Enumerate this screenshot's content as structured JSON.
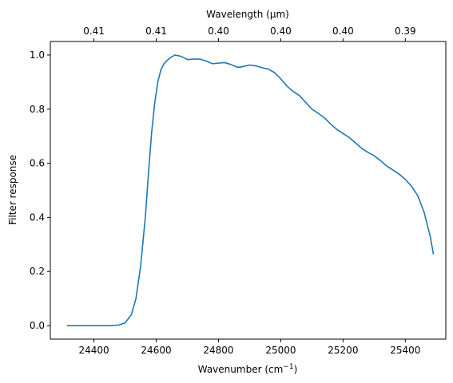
{
  "chart_data": {
    "type": "line",
    "title": "",
    "xlabel": "Wavenumber (cm",
    "xlabel_sup": "−1",
    "xlabel_close": ")",
    "ylabel": "Filter response",
    "top_xlabel": "Wavelength (μm)",
    "xlim": [
      24260,
      25530
    ],
    "ylim": [
      -0.05,
      1.05
    ],
    "grid": false,
    "x_ticks": [
      24400,
      24600,
      24800,
      25000,
      25200,
      25400
    ],
    "x_tick_labels": [
      "24400",
      "24600",
      "24800",
      "25000",
      "25200",
      "25400"
    ],
    "y_ticks": [
      0.0,
      0.2,
      0.4,
      0.6,
      0.8,
      1.0
    ],
    "y_tick_labels": [
      "0.0",
      "0.2",
      "0.4",
      "0.6",
      "0.8",
      "1.0"
    ],
    "top_ticks": [
      24400,
      24600,
      24800,
      25000,
      25200,
      25400
    ],
    "top_tick_labels": [
      "0.41",
      "0.41",
      "0.40",
      "0.40",
      "0.40",
      "0.39"
    ],
    "line_color": "#1f77b4",
    "series": [
      {
        "x": [
          24315,
          24350,
          24400,
          24450,
          24480,
          24500,
          24520,
          24535,
          24550,
          24565,
          24575,
          24585,
          24595,
          24605,
          24615,
          24625,
          24635,
          24645,
          24660,
          24680,
          24700,
          24720,
          24740,
          24760,
          24780,
          24800,
          24820,
          24840,
          24860,
          24870,
          24880,
          24900,
          24920,
          24940,
          24960,
          24980,
          25000,
          25020,
          25040,
          25060,
          25080,
          25100,
          25120,
          25140,
          25160,
          25180,
          25200,
          25220,
          25240,
          25260,
          25280,
          25300,
          25320,
          25340,
          25360,
          25380,
          25400,
          25420,
          25440,
          25460,
          25480,
          25490
        ],
        "y": [
          0.0,
          0.0,
          0.0,
          0.0,
          0.002,
          0.01,
          0.04,
          0.1,
          0.22,
          0.4,
          0.56,
          0.71,
          0.82,
          0.9,
          0.945,
          0.968,
          0.98,
          0.99,
          1.0,
          0.995,
          0.983,
          0.985,
          0.985,
          0.978,
          0.968,
          0.97,
          0.972,
          0.965,
          0.955,
          0.955,
          0.958,
          0.963,
          0.96,
          0.953,
          0.948,
          0.935,
          0.912,
          0.885,
          0.865,
          0.85,
          0.825,
          0.8,
          0.785,
          0.768,
          0.745,
          0.725,
          0.71,
          0.695,
          0.675,
          0.655,
          0.64,
          0.628,
          0.61,
          0.59,
          0.575,
          0.56,
          0.54,
          0.515,
          0.48,
          0.42,
          0.33,
          0.265
        ]
      }
    ]
  }
}
